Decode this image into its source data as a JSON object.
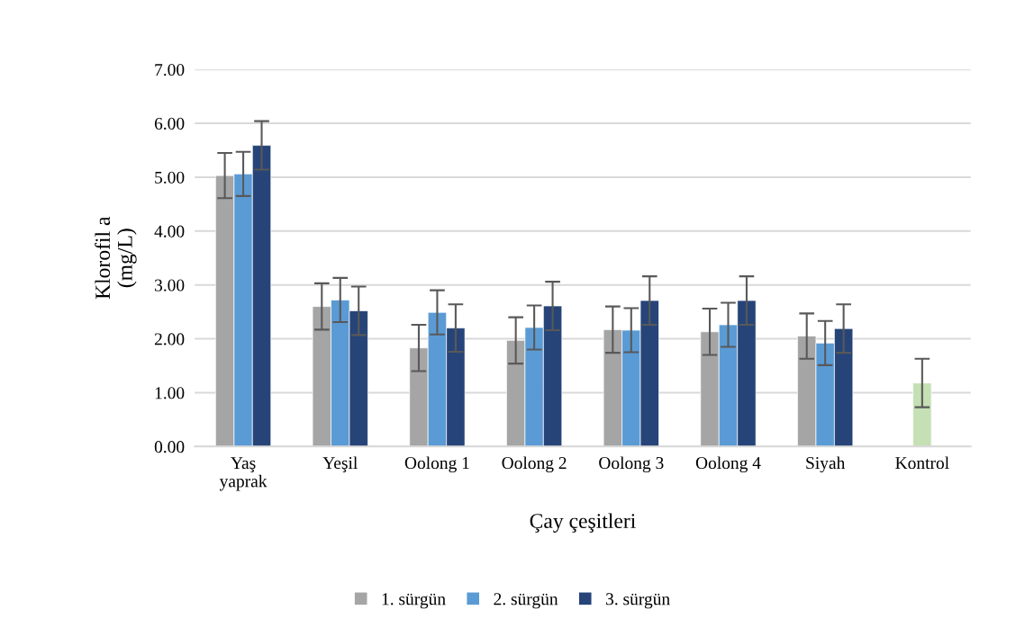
{
  "chart_data": {
    "type": "bar",
    "xlabel": "Çay çeşitleri",
    "ylabel": "Klorofil a\n(mg/L)",
    "categories": [
      "Yaş\nyaprak",
      "Yeşil",
      "Oolong 1",
      "Oolong 2",
      "Oolong 3",
      "Oolong 4",
      "Siyah",
      "Kontrol"
    ],
    "series": [
      {
        "name": "1. sürgün",
        "color": "#a5a5a5",
        "values": [
          5.03,
          2.6,
          1.83,
          1.97,
          2.17,
          2.13,
          2.05,
          null
        ],
        "errors": [
          0.42,
          0.43,
          0.43,
          0.43,
          0.43,
          0.43,
          0.42,
          null
        ]
      },
      {
        "name": "2. sürgün",
        "color": "#5b9bd5",
        "colors": [
          "#5b9bd5",
          "#5b9bd5",
          "#5b9bd5",
          "#5b9bd5",
          "#5b9bd5",
          "#5b9bd5",
          "#5b9bd5",
          "#c5e0b4"
        ],
        "values": [
          5.06,
          2.72,
          2.49,
          2.21,
          2.16,
          2.26,
          1.92,
          1.18
        ],
        "errors": [
          0.41,
          0.41,
          0.41,
          0.41,
          0.41,
          0.41,
          0.41,
          0.45
        ]
      },
      {
        "name": "3. sürgün",
        "color": "#264478",
        "values": [
          5.59,
          2.52,
          2.2,
          2.61,
          2.71,
          2.71,
          2.19,
          null
        ],
        "errors": [
          0.45,
          0.45,
          0.44,
          0.45,
          0.45,
          0.45,
          0.45,
          null
        ]
      }
    ],
    "ylim": [
      0,
      7
    ],
    "yticks": [
      {
        "value": 0,
        "label": "0.00"
      },
      {
        "value": 1,
        "label": "1.00"
      },
      {
        "value": 2,
        "label": "2.00"
      },
      {
        "value": 3,
        "label": "3.00"
      },
      {
        "value": 4,
        "label": "4.00"
      },
      {
        "value": 5,
        "label": "5.00"
      },
      {
        "value": 6,
        "label": "6.00"
      },
      {
        "value": 7,
        "label": "7.00"
      }
    ],
    "grid": "y",
    "legend": "bottom"
  }
}
